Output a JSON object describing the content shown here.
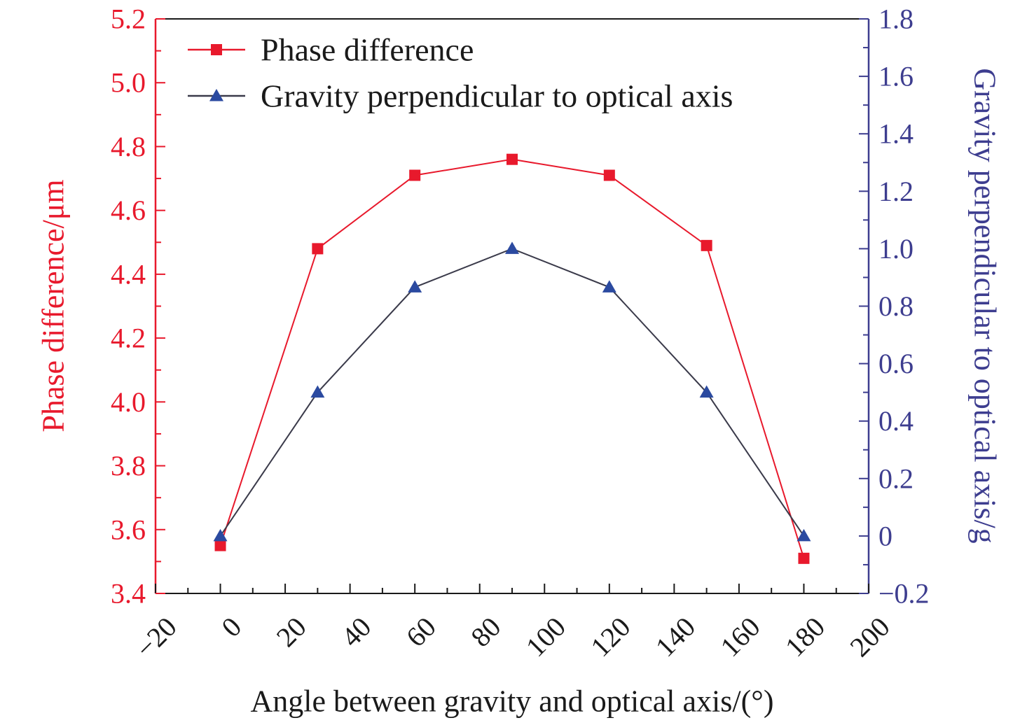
{
  "chart_data": {
    "type": "line",
    "xlabel": "Angle between gravity and optical axis/(°)",
    "ylabel_left": "Phase difference/μm",
    "ylabel_right": "Gravity perpendicular to optical axis/g",
    "xlim": [
      -20,
      200
    ],
    "ylim_left": [
      3.4,
      5.2
    ],
    "ylim_right": [
      -0.2,
      1.8
    ],
    "x_ticks": [
      "−20",
      "0",
      "20",
      "40",
      "60",
      "80",
      "100",
      "120",
      "140",
      "160",
      "180",
      "200"
    ],
    "y_left_ticks": [
      "3.4",
      "3.6",
      "3.8",
      "4.0",
      "4.2",
      "4.4",
      "4.6",
      "4.8",
      "5.0",
      "5.2"
    ],
    "y_right_ticks": [
      "−0.2",
      "0",
      "0.2",
      "0.4",
      "0.6",
      "0.8",
      "1.0",
      "1.2",
      "1.4",
      "1.6",
      "1.8"
    ],
    "grid": false,
    "legend_position": "top-left",
    "series": [
      {
        "name": "Phase difference",
        "axis": "left",
        "marker": "square",
        "color": "#e8192c",
        "x": [
          0,
          30,
          60,
          90,
          120,
          150,
          180
        ],
        "y": [
          3.55,
          4.48,
          4.71,
          4.76,
          4.71,
          4.49,
          3.51
        ]
      },
      {
        "name": "Gravity perpendicular to optical axis",
        "axis": "right",
        "marker": "triangle",
        "color": "#2b4aa0",
        "x": [
          0,
          30,
          60,
          90,
          120,
          150,
          180
        ],
        "y": [
          0.0,
          0.5,
          0.866,
          1.0,
          0.866,
          0.5,
          0.0
        ]
      }
    ],
    "colors": {
      "left_axis": "#e8192c",
      "right_axis": "#3d3d8f",
      "frame": "#1a1a1a",
      "line_gravity": "#3a3a4a"
    }
  }
}
